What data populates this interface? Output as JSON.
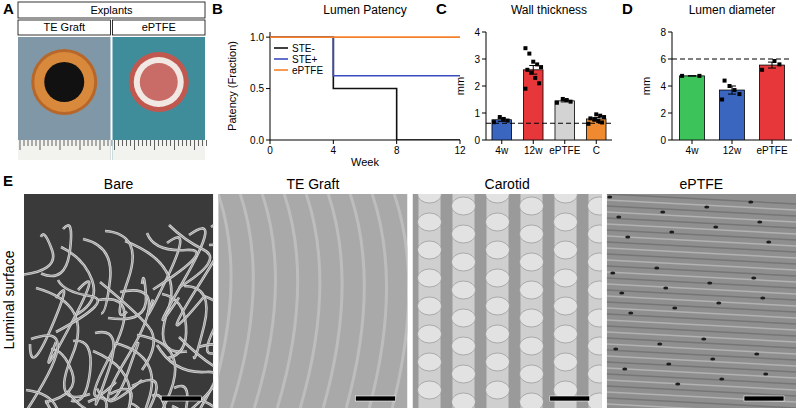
{
  "panels": {
    "A": {
      "label": "A",
      "header": "Explants",
      "columns": [
        "TE Graft",
        "ePTFE"
      ]
    },
    "E": {
      "label": "E",
      "columns": [
        "Bare",
        "TE Graft",
        "Carotid",
        "ePTFE"
      ],
      "row_label": "Luminal surface"
    }
  },
  "chart_data": [
    {
      "label": "B",
      "type": "line",
      "line_style": "step",
      "title": "Lumen Patency",
      "y_label": "Patency (Fraction)",
      "x_label": "Week",
      "x": [
        0,
        4,
        8,
        12
      ],
      "xlim": [
        0,
        12
      ],
      "xticks": [
        0,
        4,
        8,
        12
      ],
      "ylim": [
        0,
        1.05
      ],
      "yticks": [
        {
          "value": 0,
          "label": "0.0"
        },
        {
          "value": 0.5,
          "label": "0.5"
        },
        {
          "value": 1,
          "label": "1.0"
        }
      ],
      "legend": "upper left",
      "series": [
        {
          "name": "STE-",
          "color": "#111111",
          "values": [
            1,
            0.5,
            0,
            0
          ]
        },
        {
          "name": "STE+",
          "color": "#3b4cc0",
          "values": [
            1,
            0.625,
            0.625,
            0.625
          ]
        },
        {
          "name": "ePTFE",
          "color": "#f4812a",
          "values": [
            1,
            1,
            1,
            1
          ]
        }
      ]
    },
    {
      "label": "C",
      "type": "bar",
      "title": "Wall thickness",
      "y_label": "mm",
      "categories": [
        "4w",
        "12w",
        "ePTFE",
        "C"
      ],
      "values": [
        0.75,
        2.6,
        1.45,
        0.78
      ],
      "errors": [
        0.06,
        0.16,
        0.04,
        0.05
      ],
      "points": [
        [
          0.66,
          0.72,
          0.78,
          0.85
        ],
        [
          1.9,
          2.1,
          2.3,
          2.5,
          2.6,
          2.7,
          2.8,
          2.9,
          3.2,
          3.4
        ],
        [
          1.38,
          1.42,
          1.48,
          1.52
        ],
        [
          0.6,
          0.65,
          0.7,
          0.75,
          0.8,
          0.85,
          0.9,
          0.95
        ]
      ],
      "colors": [
        "#3a66c0",
        "#e8373b",
        "#d3d3d3",
        "#f08a30"
      ],
      "reference_line": 0.62,
      "ylim": [
        0,
        4
      ],
      "yticks": [
        0,
        1,
        2,
        3,
        4
      ]
    },
    {
      "label": "D",
      "type": "bar",
      "title": "Lumen diameter",
      "y_label": "mm",
      "categories": [
        "4w",
        "12w",
        "ePTFE"
      ],
      "values": [
        4.75,
        3.7,
        5.55
      ],
      "errors": [
        0,
        0.3,
        0.22
      ],
      "points": [
        [
          4.75,
          4.75
        ],
        [
          3.0,
          3.4,
          3.7,
          4.0,
          4.4
        ],
        [
          5.2,
          5.6,
          5.85
        ]
      ],
      "colors": [
        "#3cc45a",
        "#3a66c0",
        "#e8373b"
      ],
      "reference_line": 6,
      "ylim": [
        0,
        8
      ],
      "yticks": [
        0,
        2,
        4,
        6,
        8
      ]
    }
  ]
}
